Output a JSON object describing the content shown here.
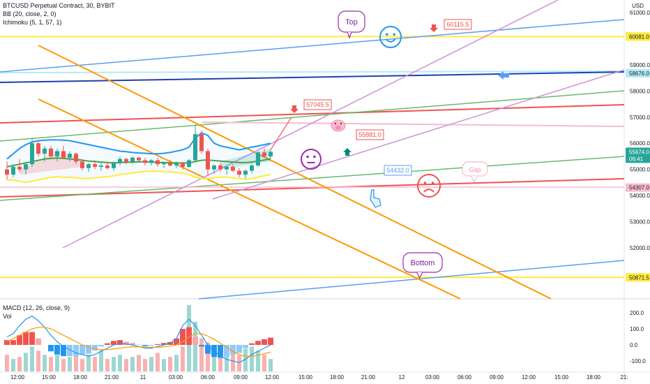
{
  "header": {
    "symbol_line": "BTCUSD Perpetual Contract, 30, BYBIT",
    "bb_line": "BB (20, close, 2, 0)",
    "ichimoku_line": "Ichimoku (5, 1, 57, 1)",
    "currency": "USD"
  },
  "macd_header": {
    "macd_line": "MACD (12, 26, close, 9)",
    "vol_line": "Vol"
  },
  "colors": {
    "up": "#26a69a",
    "down": "#ef5350",
    "bb": "#2196f3",
    "yellow": "#ffeb3b",
    "orange": "#ff9800",
    "pink": "#ce93d8",
    "green": "#66bb6a",
    "red": "#ef5350",
    "blue": "#5b9cf6",
    "navy": "#1e40af",
    "teal_light": "#b2ebf2",
    "pink_light": "#f8bbd0"
  },
  "price_axis": {
    "ticks": [
      "61000.0",
      "59000.0",
      "58000.0",
      "57000.0",
      "56000.0",
      "55000.0",
      "54000.0",
      "53000.0",
      "52000.0"
    ]
  },
  "price_tags": [
    {
      "label": "60081.0",
      "value": 60081,
      "bg": "#ffeb3b",
      "fg": "#131722"
    },
    {
      "label": "58676.0",
      "value": 58676,
      "bg": "#b2ebf2",
      "fg": "#131722"
    },
    {
      "label": "55674.0",
      "sub": "06:41",
      "value": 55674,
      "bg": "#26a69a",
      "fg": "#ffffff"
    },
    {
      "label": "54307.0",
      "value": 54307,
      "bg": "#f8bbd0",
      "fg": "#131722"
    },
    {
      "label": "50871.5",
      "value": 50871.5,
      "bg": "#ffeb3b",
      "fg": "#131722"
    }
  ],
  "time_axis": {
    "ticks": [
      "12:00",
      "15:00",
      "18:00",
      "21:00",
      "11",
      "03:00",
      "06:00",
      "09:00",
      "12:00",
      "15:00",
      "18:00",
      "21:00",
      "12",
      "03:00",
      "06:00",
      "09:00",
      "12:00",
      "15:00",
      "18:00",
      "21:"
    ]
  },
  "macd_axis": {
    "ticks": [
      "200.0",
      "100.0",
      "0.0",
      "-100.0"
    ]
  },
  "annotations": {
    "callouts": [
      "Top",
      "Bottom",
      "Gap"
    ],
    "price_labels": [
      {
        "text": "60115.5",
        "color": "#ef5350"
      },
      {
        "text": "57045.5",
        "color": "#ef5350"
      },
      {
        "text": "55881.0",
        "color": "#ef5350"
      },
      {
        "text": "54432.0",
        "color": "#5b9cf6"
      }
    ]
  },
  "chart_data": {
    "type": "candlestick",
    "price_range": [
      50400,
      61200
    ],
    "candles": [
      [
        55000,
        55300,
        54600,
        54800
      ],
      [
        54800,
        55200,
        54700,
        55100
      ],
      [
        55100,
        55400,
        54900,
        55000
      ],
      [
        55000,
        55300,
        54800,
        55200
      ],
      [
        55200,
        56200,
        55100,
        56000
      ],
      [
        56000,
        56100,
        55500,
        55600
      ],
      [
        55600,
        55900,
        55300,
        55800
      ],
      [
        55800,
        55900,
        55400,
        55500
      ],
      [
        55500,
        55800,
        55300,
        55700
      ],
      [
        55700,
        55900,
        55400,
        55450
      ],
      [
        55450,
        55700,
        55300,
        55600
      ],
      [
        55600,
        55650,
        55200,
        55300
      ],
      [
        55300,
        55400,
        54950,
        55050
      ],
      [
        55050,
        55250,
        54900,
        55200
      ],
      [
        55200,
        55350,
        55000,
        55100
      ],
      [
        55100,
        55250,
        54950,
        55150
      ],
      [
        55150,
        55300,
        55000,
        55050
      ],
      [
        55050,
        55300,
        54950,
        55250
      ],
      [
        55250,
        55500,
        55150,
        55400
      ],
      [
        55400,
        55450,
        55200,
        55300
      ],
      [
        55300,
        55500,
        55200,
        55450
      ],
      [
        55450,
        55500,
        55250,
        55350
      ],
      [
        55350,
        55450,
        55150,
        55250
      ],
      [
        55250,
        55400,
        55150,
        55350
      ],
      [
        55350,
        55450,
        55100,
        55200
      ],
      [
        55200,
        55300,
        55050,
        55250
      ],
      [
        55250,
        55350,
        55100,
        55150
      ],
      [
        55150,
        55300,
        55050,
        55250
      ],
      [
        55250,
        55300,
        55000,
        55100
      ],
      [
        55100,
        55400,
        55050,
        55350
      ],
      [
        55350,
        56700,
        55300,
        56350
      ],
      [
        56350,
        56500,
        55600,
        55700
      ],
      [
        55700,
        55800,
        54750,
        55000
      ],
      [
        55000,
        55200,
        54850,
        55150
      ],
      [
        55150,
        55250,
        54900,
        55000
      ],
      [
        55000,
        55150,
        54800,
        55100
      ],
      [
        55100,
        55200,
        54900,
        54950
      ],
      [
        54950,
        55050,
        54700,
        54800
      ],
      [
        54800,
        55000,
        54650,
        54950
      ],
      [
        54950,
        55200,
        54850,
        55150
      ],
      [
        55150,
        55700,
        55100,
        55650
      ],
      [
        55650,
        55800,
        55450,
        55500
      ],
      [
        55500,
        55750,
        55400,
        55674
      ]
    ],
    "bb_middle": [
      55100,
      55150,
      55200,
      55250,
      55300,
      55350,
      55400,
      55420,
      55440,
      55420,
      55400,
      55380,
      55350,
      55320,
      55300,
      55280,
      55260,
      55250,
      55260,
      55270,
      55280,
      55290,
      55290,
      55280,
      55270,
      55260,
      55250,
      55250,
      55240,
      55250,
      55300,
      55350,
      55360,
      55340,
      55320,
      55300,
      55280,
      55260,
      55260,
      55280,
      55320,
      55360,
      55400
    ],
    "bb_upper": [
      55400,
      55600,
      55800,
      55950,
      56050,
      56100,
      56120,
      56130,
      56130,
      56120,
      56100,
      56050,
      56000,
      55950,
      55900,
      55850,
      55800,
      55750,
      55700,
      55680,
      55650,
      55630,
      55620,
      55600,
      55600,
      55620,
      55650,
      55700,
      55750,
      55850,
      56200,
      56400,
      56300,
      56000,
      55900,
      55850,
      55800,
      55750,
      55800,
      55850,
      55900,
      55950,
      56000
    ],
    "bb_lower": [
      54600,
      54600,
      54550,
      54500,
      54550,
      54600,
      54650,
      54700,
      54720,
      54700,
      54700,
      54680,
      54650,
      54650,
      54680,
      54700,
      54720,
      54750,
      54800,
      54830,
      54860,
      54900,
      54920,
      54930,
      54930,
      54920,
      54900,
      54880,
      54850,
      54800,
      54700,
      54650,
      54650,
      54680,
      54700,
      54700,
      54680,
      54650,
      54620,
      54650,
      54700,
      54760,
      54800
    ],
    "macd": [
      50,
      70,
      120,
      160,
      180,
      150,
      110,
      60,
      20,
      -10,
      -30,
      -50,
      -60,
      -70,
      -60,
      -40,
      -20,
      0,
      10,
      5,
      0,
      -10,
      -20,
      -20,
      -10,
      0,
      10,
      40,
      120,
      160,
      120,
      60,
      0,
      -40,
      -70,
      -90,
      -100,
      -110,
      -90,
      -60,
      -40,
      -20,
      0
    ],
    "signal": [
      20,
      40,
      60,
      80,
      100,
      110,
      110,
      100,
      80,
      60,
      40,
      20,
      0,
      -15,
      -25,
      -30,
      -30,
      -25,
      -20,
      -15,
      -12,
      -12,
      -13,
      -15,
      -15,
      -12,
      -8,
      0,
      20,
      50,
      70,
      70,
      55,
      35,
      10,
      -15,
      -40,
      -60,
      -70,
      -70,
      -65,
      -55,
      -45
    ],
    "histogram": [
      30,
      30,
      60,
      80,
      80,
      40,
      0,
      -40,
      -60,
      -70,
      -70,
      -70,
      -60,
      -55,
      -35,
      -10,
      10,
      25,
      30,
      20,
      12,
      2,
      -7,
      -5,
      5,
      12,
      18,
      40,
      100,
      110,
      50,
      -10,
      -55,
      -75,
      -80,
      -75,
      -60,
      -50,
      -20,
      10,
      25,
      35,
      45
    ],
    "volume": [
      40,
      30,
      35,
      45,
      60,
      50,
      40,
      35,
      40,
      30,
      35,
      45,
      30,
      40,
      35,
      50,
      30,
      35,
      40,
      30,
      35,
      40,
      30,
      35,
      45,
      30,
      35,
      40,
      60,
      160,
      120,
      80,
      70,
      60,
      50,
      45,
      50,
      40,
      55,
      60,
      50,
      40,
      30
    ]
  }
}
